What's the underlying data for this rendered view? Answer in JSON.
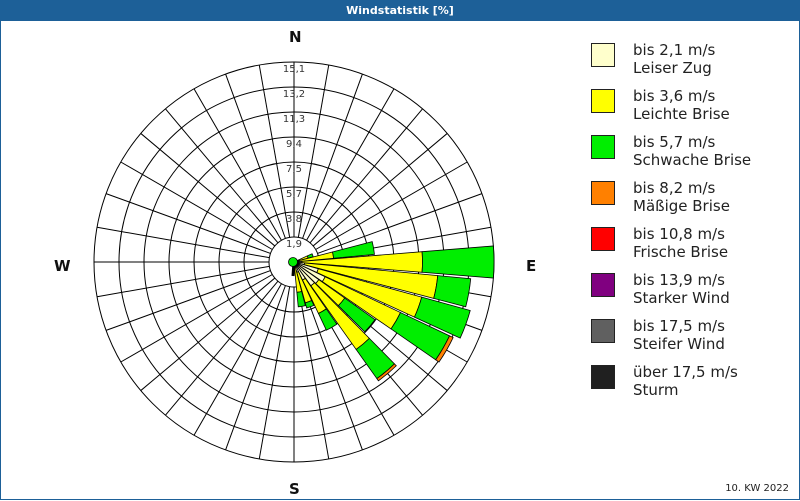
{
  "header": {
    "title": "Windstatistik [%]"
  },
  "footer": {
    "period": "10. KW 2022"
  },
  "directions": {
    "n": "N",
    "e": "E",
    "s": "S",
    "w": "W"
  },
  "legend": [
    {
      "speed": "bis 2,1 m/s",
      "name": "Leiser Zug",
      "color": "#ffffcc"
    },
    {
      "speed": "bis 3,6 m/s",
      "name": "Leichte Brise",
      "color": "#ffff00"
    },
    {
      "speed": "bis 5,7 m/s",
      "name": "Schwache Brise",
      "color": "#00ee00"
    },
    {
      "speed": "bis 8,2 m/s",
      "name": "Mäßige Brise",
      "color": "#ff8000"
    },
    {
      "speed": "bis 10,8 m/s",
      "name": "Frische Brise",
      "color": "#ff0000"
    },
    {
      "speed": "bis 13,9 m/s",
      "name": "Starker Wind",
      "color": "#800080"
    },
    {
      "speed": "bis 17,5 m/s",
      "name": "Steifer Wind",
      "color": "#606060"
    },
    {
      "speed": "über 17,5 m/s",
      "name": "Sturm",
      "color": "#202020"
    }
  ],
  "chart_data": {
    "type": "wind-rose",
    "title": "Windstatistik [%]",
    "subtitle": "10. KW 2022",
    "radial_ticks": [
      "1,9",
      "3,8",
      "5,7",
      "7,5",
      "9,4",
      "11,3",
      "13,2",
      "15,1"
    ],
    "radial_max": 15.1,
    "sector_width_deg": 10,
    "classes": [
      "bis 2,1 m/s",
      "bis 3,6 m/s",
      "bis 5,7 m/s",
      "bis 8,2 m/s",
      "bis 10,8 m/s",
      "bis 13,9 m/s",
      "bis 17,5 m/s",
      "über 17,5 m/s"
    ],
    "sectors": [
      {
        "dir": 70,
        "values": [
          0.3,
          0.8,
          0.4,
          0,
          0,
          0,
          0,
          0
        ]
      },
      {
        "dir": 80,
        "values": [
          0.4,
          2.6,
          3.1,
          0,
          0,
          0,
          0,
          0
        ]
      },
      {
        "dir": 90,
        "values": [
          0.6,
          9.1,
          5.4,
          0,
          0,
          0,
          0,
          0
        ]
      },
      {
        "dir": 100,
        "values": [
          0.8,
          10.1,
          2.5,
          0,
          0,
          0,
          0,
          0
        ]
      },
      {
        "dir": 110,
        "values": [
          1.9,
          8.1,
          3.8,
          0,
          0,
          0,
          0,
          0
        ]
      },
      {
        "dir": 120,
        "values": [
          2.6,
          6.3,
          4.1,
          0.3,
          0,
          0,
          0,
          0
        ]
      },
      {
        "dir": 130,
        "values": [
          2.3,
          2.4,
          2.8,
          0,
          0,
          0,
          0,
          0
        ]
      },
      {
        "dir": 140,
        "values": [
          2.2,
          5.9,
          2.7,
          0.2,
          0,
          0,
          0,
          0
        ]
      },
      {
        "dir": 150,
        "values": [
          1.5,
          2.8,
          1.4,
          0,
          0,
          0,
          0,
          0
        ]
      },
      {
        "dir": 160,
        "values": [
          0.8,
          2.4,
          0.4,
          0,
          0,
          0,
          0,
          0
        ]
      },
      {
        "dir": 170,
        "values": [
          0.3,
          2.0,
          1.1,
          0,
          0,
          0,
          0,
          0
        ]
      }
    ],
    "legend_position": "right"
  }
}
